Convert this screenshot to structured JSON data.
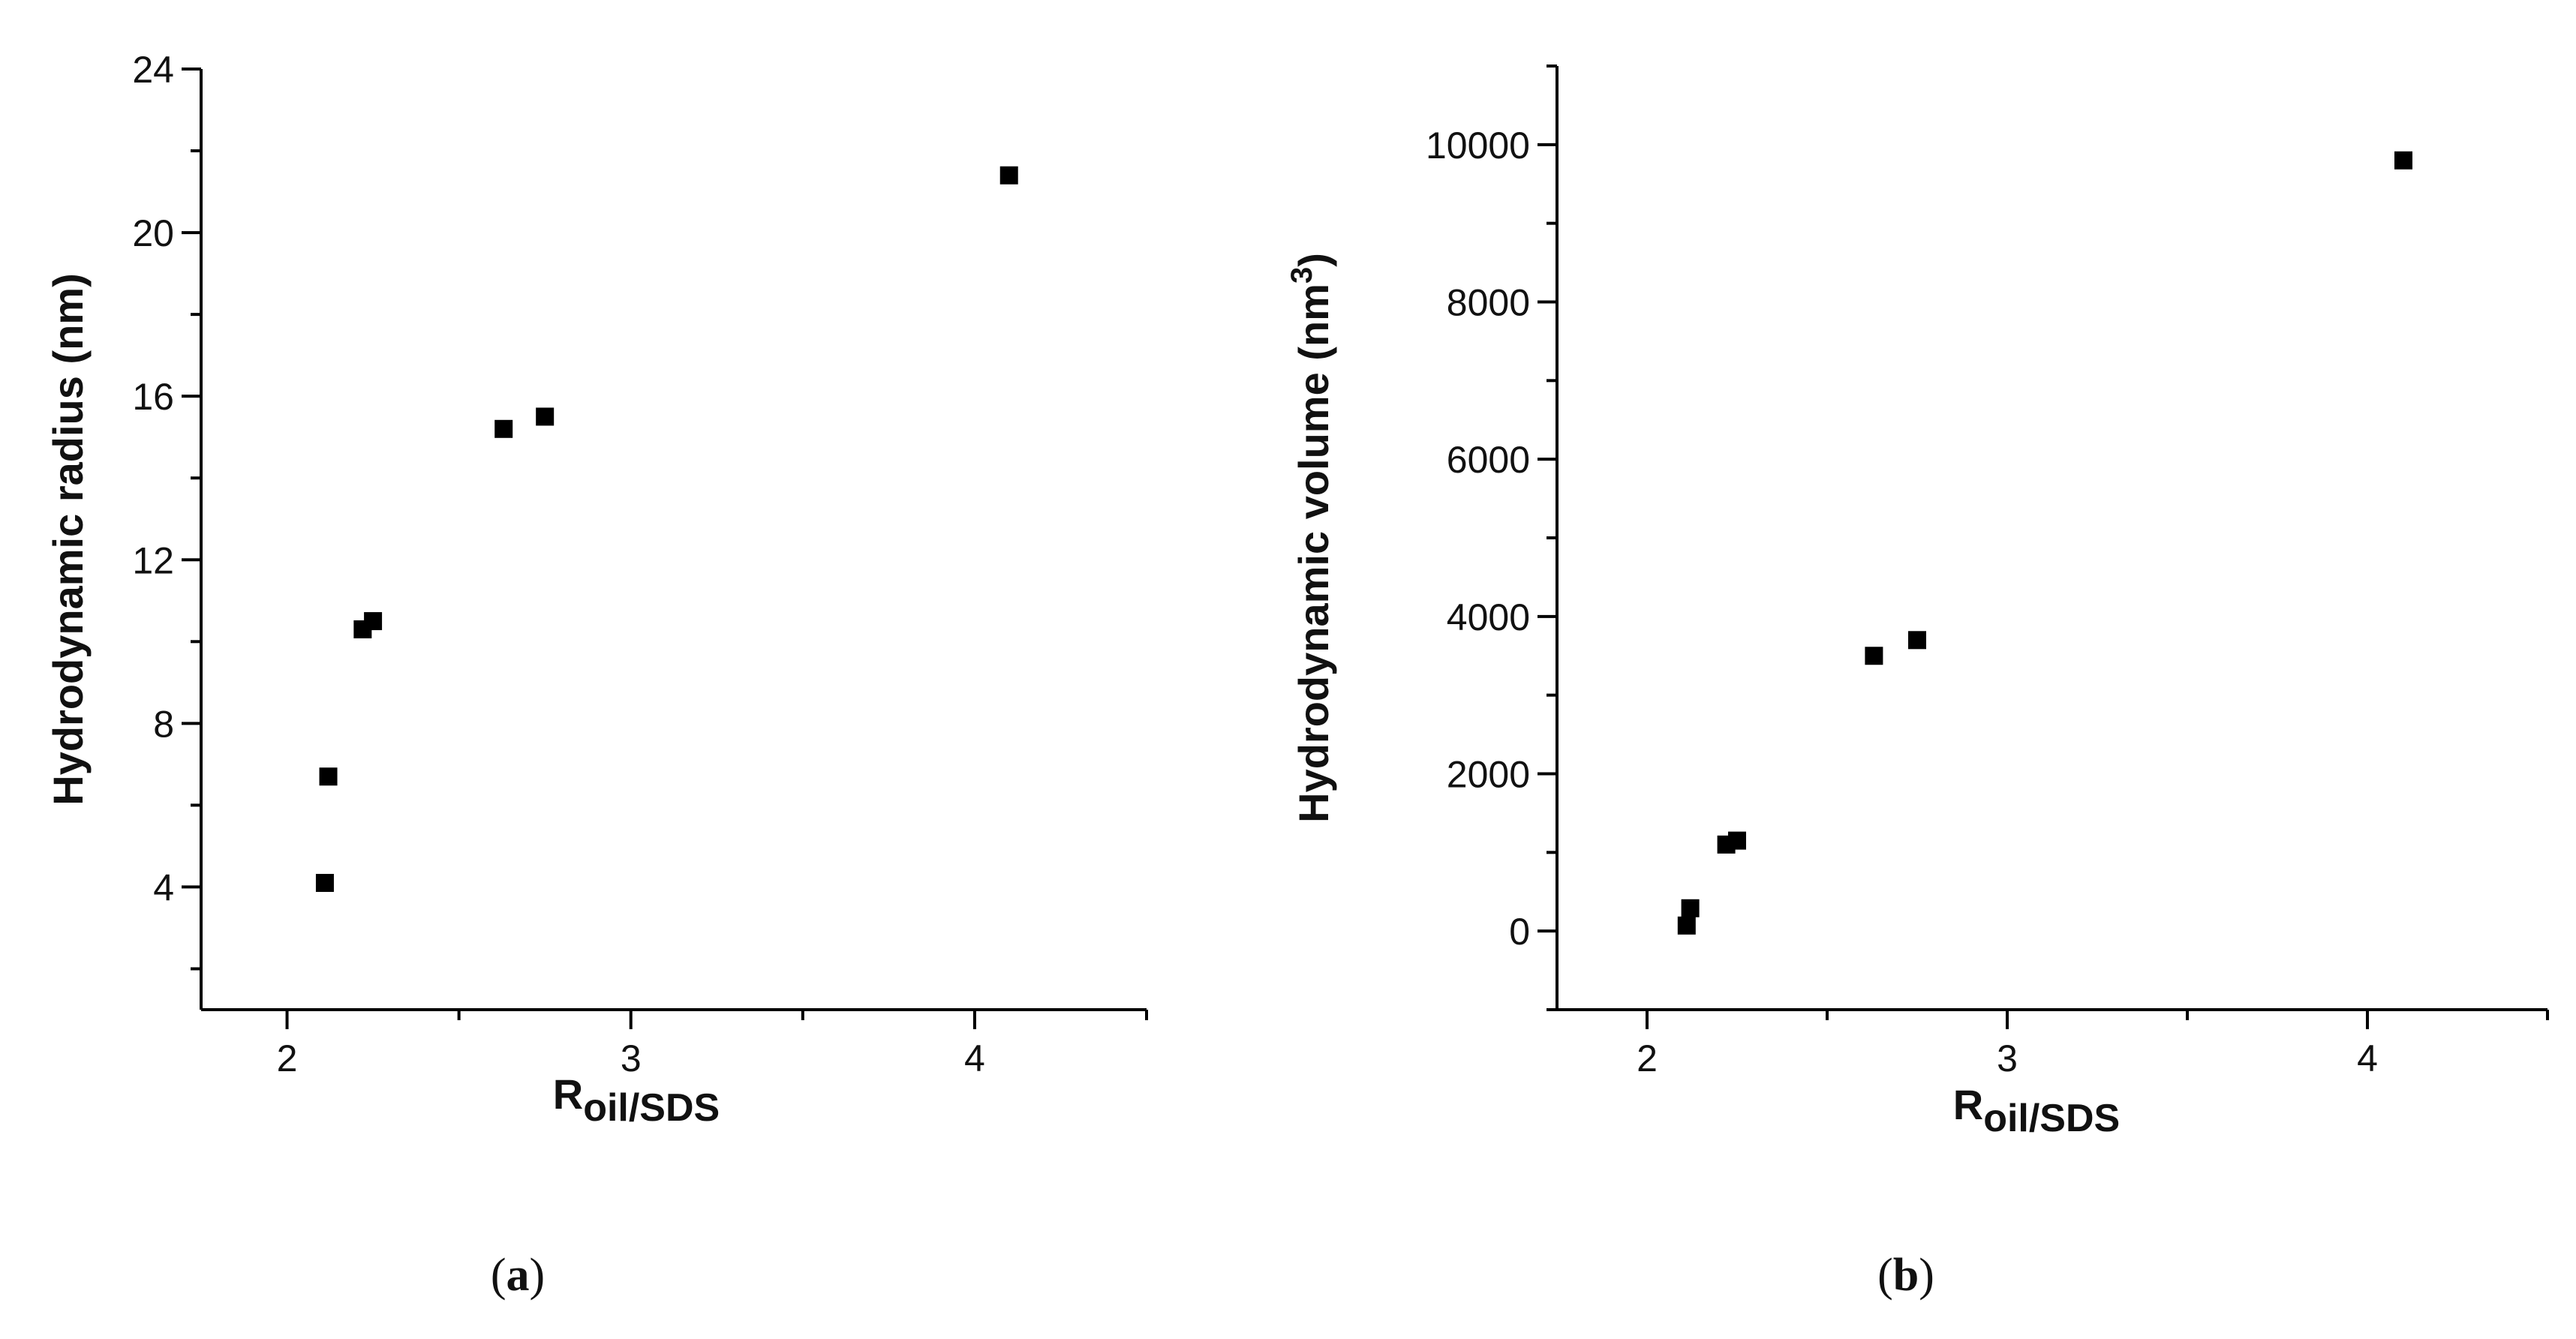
{
  "chart_data": [
    {
      "type": "scatter",
      "caption_open": "(",
      "caption_letter": "a",
      "caption_close": ")",
      "xlabel_main": "R",
      "xlabel_sub": "oil/SDS",
      "ylabel": "Hydrodynamic radius (nm)",
      "ylabel_sup": "",
      "ylabel_close": "",
      "xlim": [
        1.75,
        4.5
      ],
      "ylim": [
        1.0,
        24.0
      ],
      "xticks": [
        2,
        3,
        4
      ],
      "xminor": [
        2.5,
        3.5,
        4.5
      ],
      "yticks": [
        4,
        8,
        12,
        16,
        20,
        24
      ],
      "yminor": [
        2,
        6,
        10,
        14,
        18,
        22
      ],
      "grid": false,
      "marker": "filled-square",
      "x": [
        2.11,
        2.12,
        2.22,
        2.25,
        2.63,
        2.75,
        4.1
      ],
      "y": [
        4.1,
        6.7,
        10.3,
        10.5,
        15.2,
        15.5,
        21.4
      ]
    },
    {
      "type": "scatter",
      "caption_open": "(",
      "caption_letter": "b",
      "caption_close": ")",
      "xlabel_main": "R",
      "xlabel_sub": "oil/SDS",
      "ylabel": "Hydrodynamic volume (nm",
      "ylabel_sup": "3",
      "ylabel_close": ")",
      "xlim": [
        1.75,
        4.5
      ],
      "ylim": [
        -1000,
        11000
      ],
      "xticks": [
        2,
        3,
        4
      ],
      "xminor": [
        2.5,
        3.5,
        4.5
      ],
      "yticks": [
        0,
        2000,
        4000,
        6000,
        8000,
        10000
      ],
      "yminor": [
        -1000,
        1000,
        3000,
        5000,
        7000,
        9000,
        11000
      ],
      "grid": false,
      "marker": "filled-square",
      "x": [
        2.11,
        2.12,
        2.22,
        2.25,
        2.63,
        2.75,
        4.1
      ],
      "y": [
        70,
        290,
        1100,
        1150,
        3500,
        3700,
        9800
      ]
    }
  ]
}
